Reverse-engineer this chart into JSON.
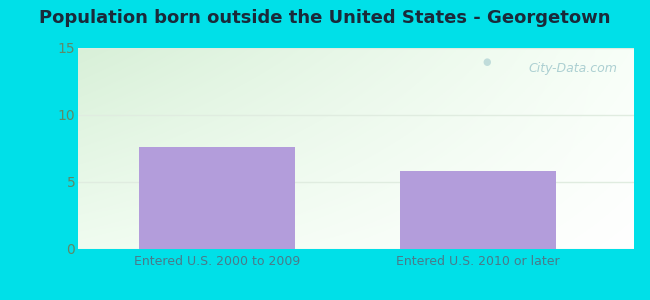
{
  "title": "Population born outside the United States - Georgetown",
  "categories": [
    "Entered U.S. 2000 to 2009",
    "Entered U.S. 2010 or later"
  ],
  "values": [
    7.6,
    5.8
  ],
  "bar_color": "#b39ddb",
  "bar_width": 0.28,
  "bar_positions": [
    0.25,
    0.72
  ],
  "ylim": [
    0,
    15
  ],
  "yticks": [
    0,
    5,
    10,
    15
  ],
  "background_outer": "#00e0e8",
  "bg_top_left": "#d8f0d8",
  "bg_top_right": "#f0faf0",
  "bg_bottom": "#f8fff8",
  "title_fontsize": 13,
  "title_color": "#1a2a3a",
  "tick_label_color": "#5c8a6a",
  "xtick_label_color": "#4a7a8a",
  "grid_color": "#e0ece0",
  "watermark": "City-Data.com",
  "watermark_color": "#a0c8cc"
}
